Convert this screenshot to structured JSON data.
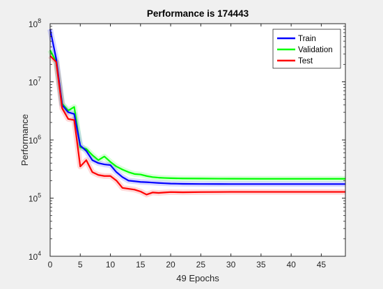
{
  "chart_data": {
    "type": "line",
    "title": "Performance is 174443",
    "xlabel": "49 Epochs",
    "ylabel": "Performance",
    "xlim": [
      0,
      49
    ],
    "ylim": [
      10000,
      100000000
    ],
    "yscale": "log",
    "xticks": [
      0,
      5,
      10,
      15,
      20,
      25,
      30,
      35,
      40,
      45
    ],
    "yticks": [
      {
        "value": 10000,
        "base": "10",
        "exp": "4"
      },
      {
        "value": 100000,
        "base": "10",
        "exp": "5"
      },
      {
        "value": 1000000,
        "base": "10",
        "exp": "6"
      },
      {
        "value": 10000000,
        "base": "10",
        "exp": "7"
      },
      {
        "value": 100000000,
        "base": "10",
        "exp": "8"
      }
    ],
    "grid": false,
    "legend_position": "top-right",
    "series": [
      {
        "name": "Train",
        "color": "#0000ff",
        "x": [
          0,
          1,
          2,
          3,
          4,
          5,
          6,
          7,
          8,
          9,
          10,
          11,
          12,
          13,
          14,
          15,
          16,
          17,
          18,
          19,
          20,
          22,
          25,
          28,
          30,
          35,
          40,
          45,
          49
        ],
        "y": [
          80000000,
          25000000,
          4000000,
          3000000,
          2800000,
          800000,
          650000,
          450000,
          400000,
          380000,
          370000,
          280000,
          230000,
          200000,
          195000,
          190000,
          188000,
          185000,
          182000,
          180000,
          178000,
          176000,
          175000,
          174800,
          174600,
          174500,
          174450,
          174443,
          174443
        ]
      },
      {
        "name": "Validation",
        "color": "#00ff00",
        "x": [
          0,
          1,
          2,
          3,
          4,
          5,
          6,
          7,
          8,
          9,
          10,
          11,
          12,
          13,
          14,
          15,
          16,
          17,
          18,
          19,
          20,
          22,
          25,
          28,
          30,
          35,
          40,
          45,
          49
        ],
        "y": [
          35000000,
          22000000,
          4200000,
          3200000,
          3700000,
          750000,
          700000,
          550000,
          450000,
          520000,
          420000,
          350000,
          310000,
          280000,
          260000,
          255000,
          240000,
          230000,
          225000,
          222000,
          220000,
          218000,
          217000,
          216000,
          215500,
          215000,
          215000,
          215000,
          215000
        ]
      },
      {
        "name": "Test",
        "color": "#ff0000",
        "x": [
          0,
          1,
          2,
          3,
          4,
          5,
          6,
          7,
          8,
          9,
          10,
          11,
          12,
          13,
          14,
          15,
          16,
          17,
          18,
          19,
          20,
          22,
          25,
          28,
          30,
          35,
          40,
          45,
          49
        ],
        "y": [
          28000000,
          22000000,
          3500000,
          2300000,
          2200000,
          350000,
          450000,
          280000,
          250000,
          240000,
          240000,
          200000,
          150000,
          145000,
          140000,
          130000,
          115000,
          125000,
          123000,
          125000,
          127000,
          126000,
          127000,
          127500,
          128000,
          128000,
          128000,
          128000,
          128000
        ]
      }
    ]
  }
}
